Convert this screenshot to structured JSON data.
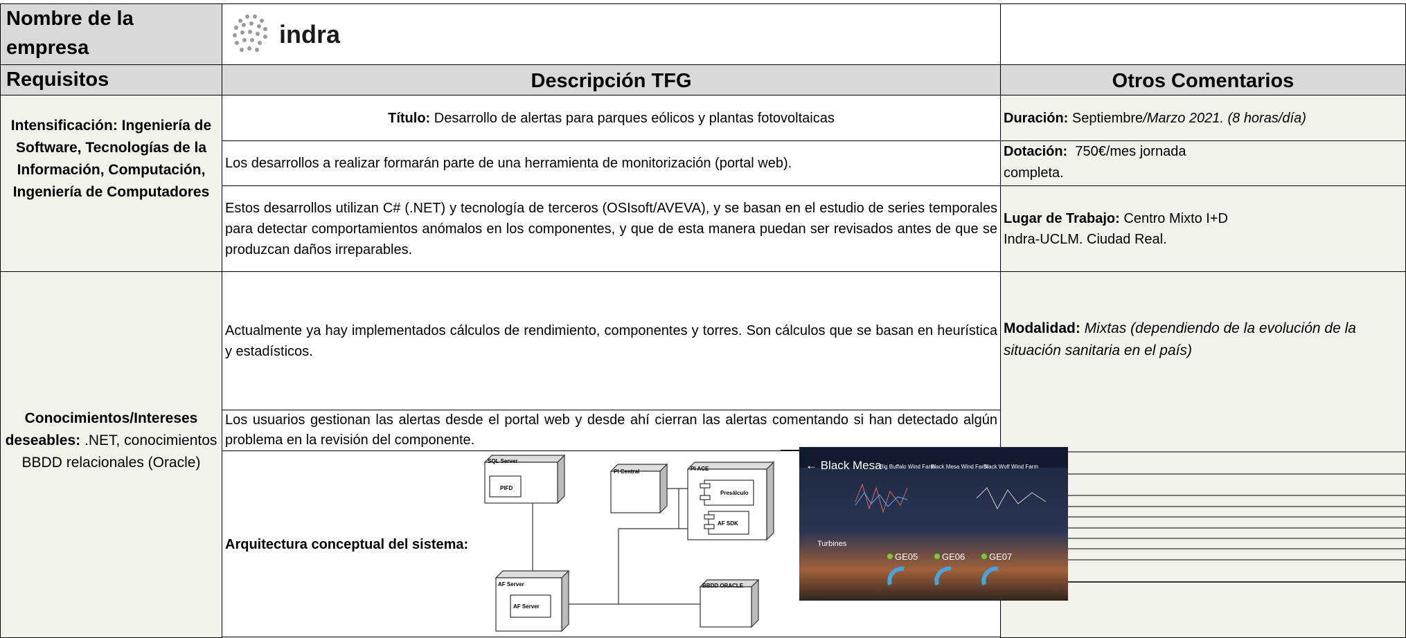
{
  "header": {
    "company_label": "Nombre de la empresa",
    "logo_text": "indra"
  },
  "table": {
    "column_headers": [
      "Requisitos",
      "Descripción TFG",
      "Otros Comentarios"
    ],
    "requirements": [
      {
        "label": "Intensificación: Ingeniería de Software, Tecnologías de la Información, Computación, Ingeniería de Computadores"
      },
      {
        "label": "Conocimientos/Intereses deseables:",
        "text": ".NET, conocimientos BBDD relacionales (Oracle)"
      }
    ],
    "description": {
      "title": {
        "label": "Título:",
        "text": "Desarrollo de alertas para parques eólicos y plantas fotovoltaicas"
      },
      "paragraphs": [
        "Los desarrollos a realizar formarán parte de una herramienta de monitorización (portal web).",
        "Estos desarrollos utilizan C# (.NET) y tecnología de terceros (OSIsoft/AVEVA), y se basan en el estudio de series temporales para detectar comportamientos anómalos en los componentes, y que de esta manera puedan ser revisados antes de que se produzcan daños irreparables.",
        "Actualmente ya hay implementados cálculos de rendimiento, componentes y torres. Son cálculos que se basan en heurística y estadísticos.",
        "Los usuarios gestionan las alertas desde el portal web y desde ahí cierran las alertas comentando si han detectado algún problema en la revisión del componente."
      ],
      "architecture_label": "Arquitectura conceptual del sistema:"
    },
    "comments": {
      "duration": {
        "label": "Duración:",
        "text": "Septiembre",
        "italic": "/Marzo 2021. (8 horas/día)"
      },
      "funding": {
        "label": "Dotación:",
        "lines": [
          "750€/mes jornada",
          "completa."
        ]
      },
      "workplace": {
        "label": "Lugar de Trabajo:",
        "lines": [
          "Centro Mixto I+D",
          "Indra-UCLM. Ciudad Real."
        ]
      },
      "mode": {
        "label": "Modalidad:",
        "italic": "Mixtas (dependiendo de la evolución de la situación sanitaria en el país)"
      }
    }
  },
  "figures": {
    "diagram": [
      "SQL Server",
      "PIFD",
      "PI Central",
      "PI ACE",
      "Presálculo",
      "AF SDK",
      "AF Server",
      "AF Server",
      "BBDD ORACLE"
    ],
    "screenshot": {
      "title": "← Black Mesa",
      "tabs": [
        "Big Buffalo Wind Farm",
        "Black Mesa Wind Farm",
        "Black Wolf Wind Farm"
      ],
      "section": "Turbines",
      "turbines": [
        "GE05",
        "GE06",
        "GE07"
      ]
    }
  }
}
